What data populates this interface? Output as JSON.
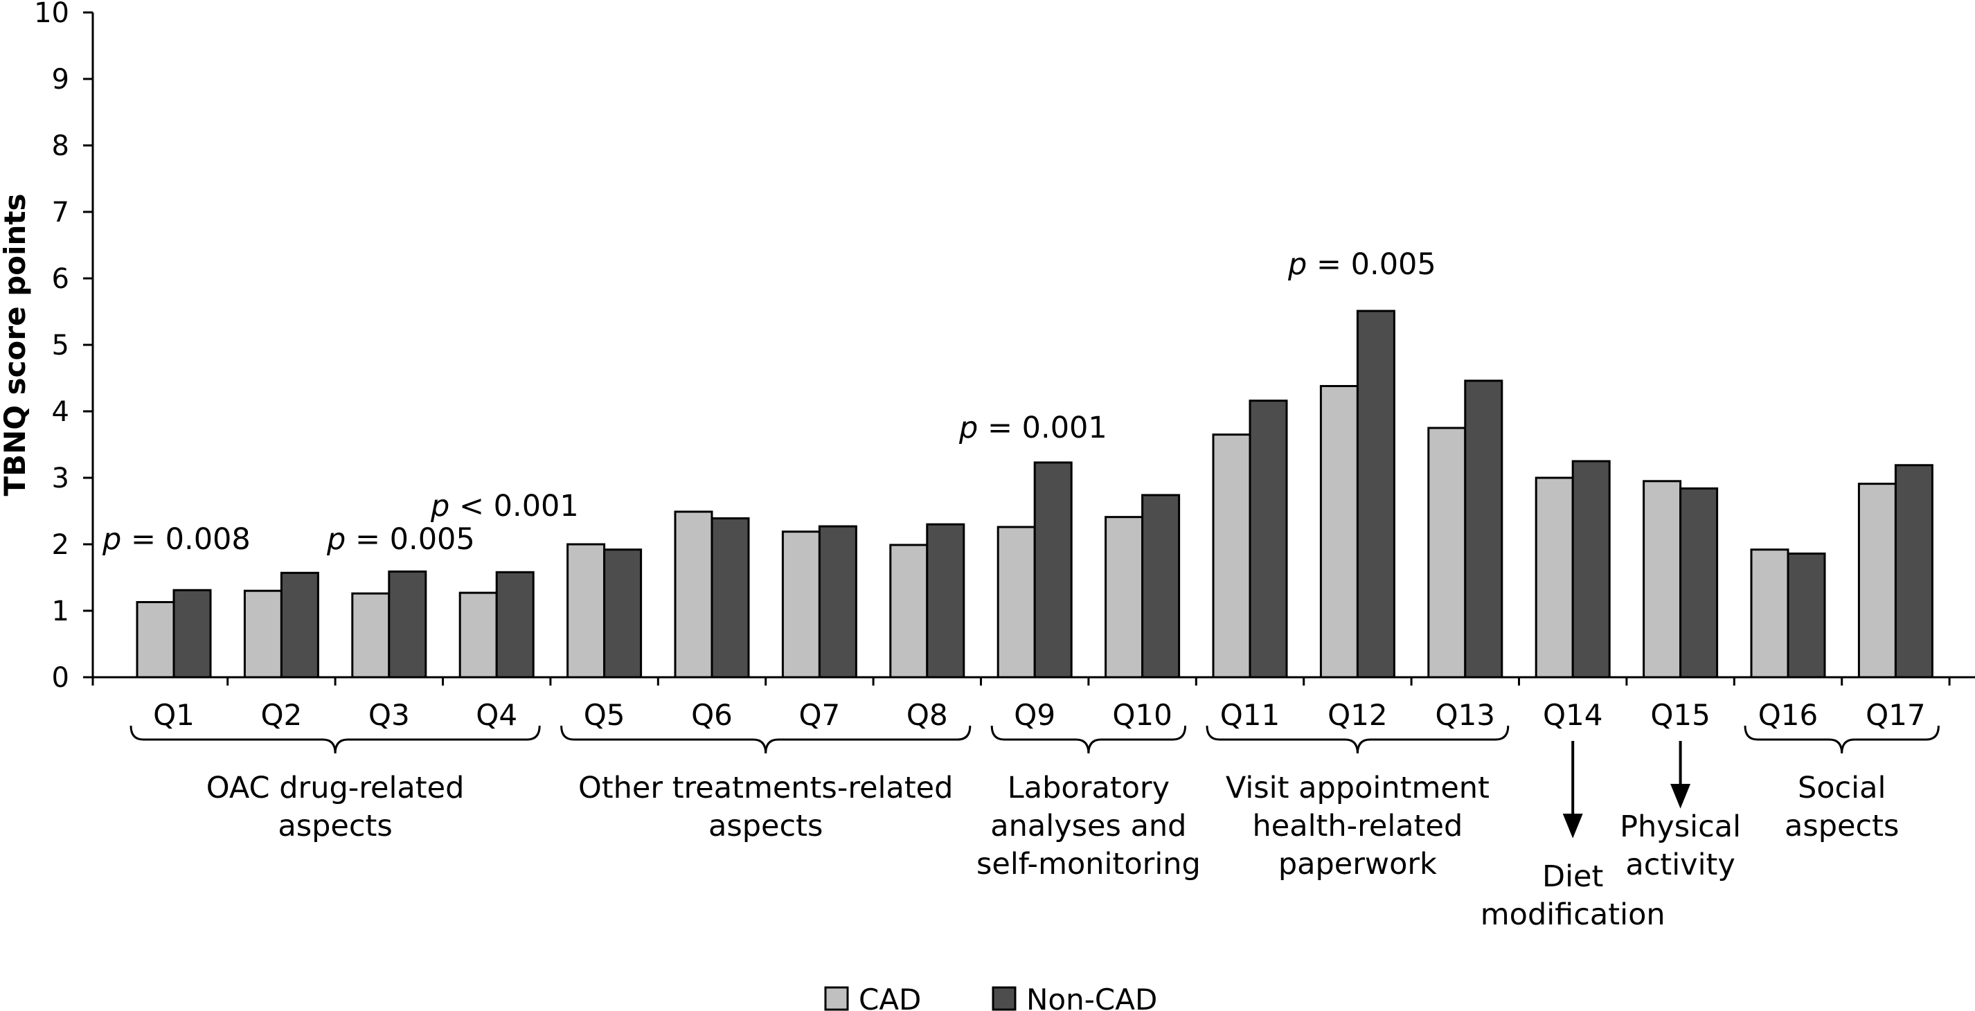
{
  "chart_data": {
    "type": "bar",
    "title": "",
    "xlabel": "",
    "ylabel": "TBNQ score points",
    "ylim": [
      0,
      10
    ],
    "yticks": [
      "0",
      "1",
      "2",
      "3",
      "4",
      "5",
      "6",
      "7",
      "8",
      "9",
      "10"
    ],
    "grid": false,
    "legend_position": "bottom",
    "categories": [
      "Q1",
      "Q2",
      "Q3",
      "Q4",
      "Q5",
      "Q6",
      "Q7",
      "Q8",
      "Q9",
      "Q10",
      "Q11",
      "Q12",
      "Q13",
      "Q14",
      "Q15",
      "Q16",
      "Q17"
    ],
    "series": [
      {
        "name": "CAD",
        "color": "#c0c0c0",
        "values": [
          1.13,
          1.3,
          1.26,
          1.27,
          2.0,
          2.49,
          2.19,
          1.99,
          2.26,
          2.41,
          3.65,
          4.38,
          3.75,
          3.0,
          2.95,
          1.92,
          2.91
        ]
      },
      {
        "name": "Non-CAD",
        "color": "#4d4d4d",
        "values": [
          1.31,
          1.57,
          1.59,
          1.58,
          1.92,
          2.39,
          2.27,
          2.3,
          3.23,
          2.74,
          4.16,
          5.51,
          4.46,
          3.25,
          2.84,
          1.86,
          3.19
        ]
      }
    ],
    "annotations": [
      {
        "id": "p-q1",
        "category": "Q1",
        "italic": "p",
        "rest": " = 0.008"
      },
      {
        "id": "p-q3",
        "category": "Q3",
        "italic": "p",
        "rest": " = 0.005"
      },
      {
        "id": "p-q4",
        "category": "Q4",
        "italic": "p",
        "rest": " < 0.001"
      },
      {
        "id": "p-q9",
        "category": "Q9",
        "italic": "p",
        "rest": " = 0.001"
      },
      {
        "id": "p-q12",
        "category": "Q12",
        "italic": "p",
        "rest": " = 0.005"
      }
    ],
    "groups": [
      {
        "name": "oac-drug",
        "from": "Q1",
        "to": "Q4",
        "kind": "brace",
        "label_lines": [
          "OAC drug-related",
          "aspects"
        ]
      },
      {
        "name": "other-treatments",
        "from": "Q5",
        "to": "Q8",
        "kind": "brace",
        "label_lines": [
          "Other treatments-related",
          "aspects"
        ]
      },
      {
        "name": "laboratory",
        "from": "Q9",
        "to": "Q10",
        "kind": "brace",
        "label_lines": [
          "Laboratory",
          "analyses and",
          "self-monitoring"
        ]
      },
      {
        "name": "visit-appointment",
        "from": "Q11",
        "to": "Q13",
        "kind": "brace",
        "label_lines": [
          "Visit appointment",
          "health-related",
          "paperwork"
        ]
      },
      {
        "name": "diet",
        "from": "Q14",
        "to": "Q14",
        "kind": "arrow",
        "label_lines": [
          "Diet",
          "modification"
        ]
      },
      {
        "name": "physical",
        "from": "Q15",
        "to": "Q15",
        "kind": "arrow",
        "label_lines": [
          "Physical",
          "activity"
        ]
      },
      {
        "name": "social",
        "from": "Q16",
        "to": "Q17",
        "kind": "brace",
        "label_lines": [
          "Social",
          "aspects"
        ]
      }
    ]
  }
}
